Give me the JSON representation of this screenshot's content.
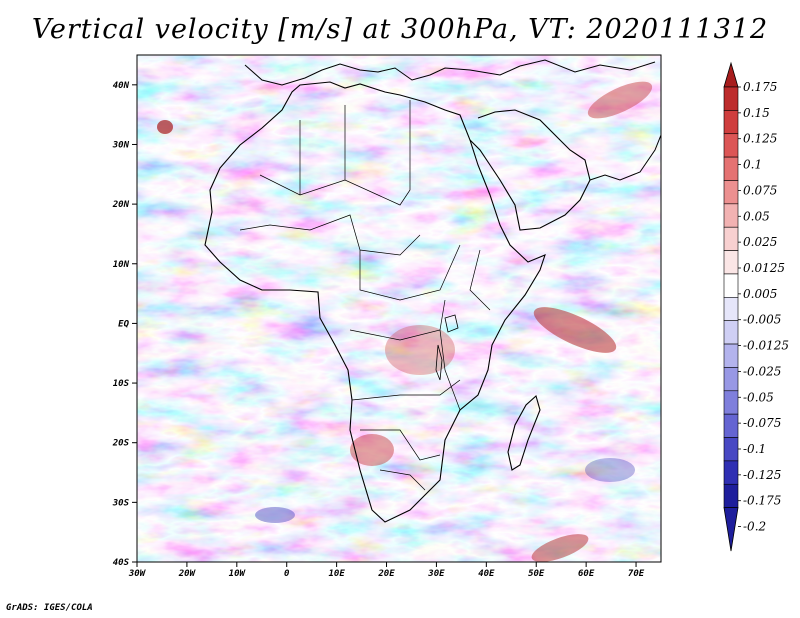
{
  "title": "Vertical velocity [m/s] at 300hPa, VT: 2020111312",
  "credit": "GrADS: IGES/COLA",
  "map": {
    "x_axis": {
      "ticks": [
        -30,
        -20,
        -10,
        0,
        10,
        20,
        30,
        40,
        50,
        60,
        70
      ],
      "labels": [
        "30W",
        "20W",
        "10W",
        "0",
        "10E",
        "20E",
        "30E",
        "40E",
        "50E",
        "60E",
        "70E"
      ],
      "range": [
        -30,
        75
      ]
    },
    "y_axis": {
      "ticks": [
        40,
        30,
        20,
        10,
        0,
        -10,
        -20,
        -30,
        -40
      ],
      "labels": [
        "40N",
        "30N",
        "20N",
        "10N",
        "EQ",
        "10S",
        "20S",
        "30S",
        "40S"
      ],
      "range": [
        -40,
        45
      ]
    },
    "colorbar": {
      "levels": [
        "0.175",
        "0.15",
        "0.125",
        "0.1",
        "0.075",
        "0.05",
        "0.025",
        "0.0125",
        "0.005",
        "-0.005",
        "-0.0125",
        "-0.025",
        "-0.05",
        "-0.075",
        "-0.1",
        "-0.125",
        "-0.175",
        "-0.2"
      ],
      "colors": [
        "#a71d1d",
        "#bd2c2c",
        "#cf3e3e",
        "#dc5656",
        "#e57272",
        "#ec9090",
        "#f2b2b2",
        "#f8d0d0",
        "#fbe6e6",
        "#ffffff",
        "#e6e6fa",
        "#cfcff4",
        "#b3b3ed",
        "#9898e5",
        "#7f7fdc",
        "#6565d2",
        "#4848c3",
        "#2f2fb3",
        "#1e1e9c"
      ]
    }
  }
}
